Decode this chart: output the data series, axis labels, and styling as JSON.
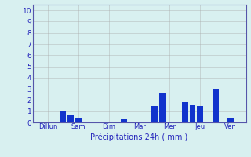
{
  "bar_positions": [
    4,
    5,
    6,
    12,
    16,
    17,
    20,
    21,
    22,
    23,
    24,
    26,
    27
  ],
  "bar_values": [
    1.0,
    0.72,
    0.42,
    0.3,
    1.5,
    2.6,
    1.85,
    1.55,
    1.5,
    0.0,
    3.0,
    0.4,
    0.0
  ],
  "bar_color": "#1133cc",
  "xtick_positions": [
    2,
    6,
    10,
    14,
    18,
    22,
    26
  ],
  "xtick_labels": [
    "Dillun",
    "Sam",
    "Dim",
    "Mar",
    "Mer",
    "Jeu",
    "Ven"
  ],
  "ytick_positions": [
    0,
    1,
    2,
    3,
    4,
    5,
    6,
    7,
    8,
    9,
    10
  ],
  "ytick_labels": [
    "0",
    "1",
    "2",
    "3",
    "4",
    "5",
    "6",
    "7",
    "8",
    "9",
    "10"
  ],
  "xlabel": "Précipitations 24h ( mm )",
  "ylim": [
    0,
    10.5
  ],
  "xlim": [
    0,
    28
  ],
  "background_color": "#d8f0f0",
  "grid_color": "#aaaaaa",
  "bar_width": 0.8
}
